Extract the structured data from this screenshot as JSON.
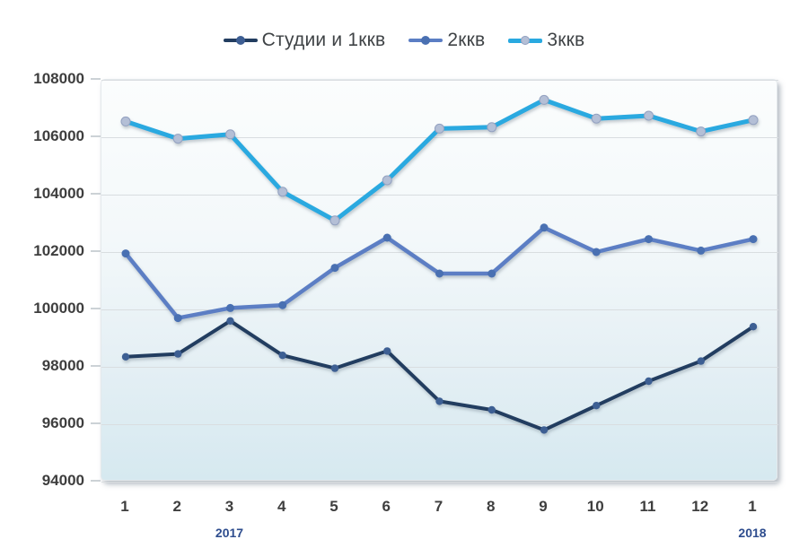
{
  "chart_data": {
    "type": "line",
    "title": "",
    "xlabel": "",
    "ylabel": "",
    "categories": [
      "1",
      "2",
      "3",
      "4",
      "5",
      "6",
      "7",
      "8",
      "9",
      "10",
      "11",
      "12",
      "1"
    ],
    "year_markers": [
      {
        "category_index": 2,
        "label": "2017"
      },
      {
        "category_index": 12,
        "label": "2018"
      }
    ],
    "series": [
      {
        "name": "Студии и 1ккв",
        "color": "#223d60",
        "marker_color": "#3d5e93",
        "line_width": 4,
        "marker_radius": 4.2,
        "values": [
          98350,
          98450,
          99600,
          98400,
          97950,
          98550,
          96800,
          96500,
          95800,
          96650,
          97500,
          98200,
          99400
        ]
      },
      {
        "name": "2ккв",
        "color": "#5b7ec4",
        "marker_color": "#4a70b2",
        "line_width": 4.5,
        "marker_radius": 4.5,
        "values": [
          101950,
          99700,
          100050,
          100150,
          101450,
          102500,
          101250,
          101250,
          102850,
          102000,
          102450,
          102050,
          102450
        ]
      },
      {
        "name": "3ккв",
        "color": "#29a9e0",
        "marker_color": "#b4bfd6",
        "marker_stroke": "#93a1c0",
        "line_width": 5,
        "marker_radius": 5,
        "values": [
          106550,
          105950,
          106100,
          104100,
          103100,
          104500,
          106300,
          106350,
          107300,
          106650,
          106750,
          106200,
          106600
        ]
      }
    ],
    "ylim": [
      94000,
      108000
    ],
    "ytick_step": 2000,
    "ytick_labels": [
      "108000",
      "106000",
      "104000",
      "102000",
      "100000",
      "98000",
      "96000",
      "94000"
    ],
    "grid": true,
    "grid_color": "#d9dde0",
    "legend_position": "top",
    "axis_label_color": "#3e3e3e",
    "year_label_color": "#2e4d8e"
  }
}
